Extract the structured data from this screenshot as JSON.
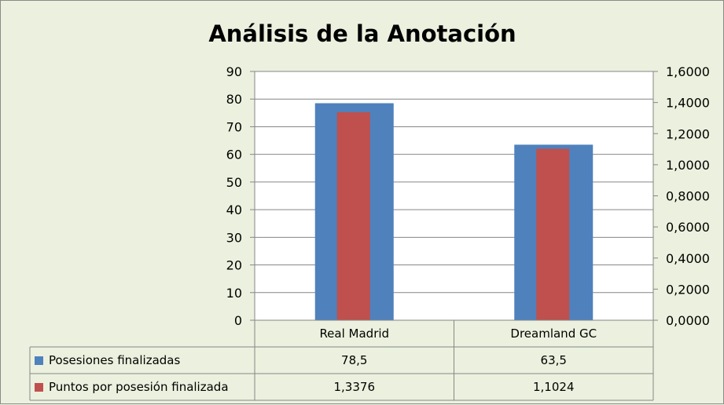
{
  "chart_data": {
    "type": "bar",
    "title": "Análisis de la Anotación",
    "categories": [
      "Real Madrid",
      "Dreamland GC"
    ],
    "series": [
      {
        "name": "Posesiones finalizadas",
        "values": [
          78.5,
          63.5
        ],
        "display_values": [
          "78,5",
          "63,5"
        ],
        "axis": "left",
        "color": "#4f81bd"
      },
      {
        "name": "Puntos por posesión finalizada",
        "values": [
          1.3376,
          1.1024
        ],
        "display_values": [
          "1,3376",
          "1,1024"
        ],
        "axis": "right",
        "color": "#c0504d"
      }
    ],
    "y_left": {
      "ylim": [
        0,
        90
      ],
      "ticks": [
        0,
        10,
        20,
        30,
        40,
        50,
        60,
        70,
        80,
        90
      ],
      "tick_labels": [
        "0",
        "10",
        "20",
        "30",
        "40",
        "50",
        "60",
        "70",
        "80",
        "90"
      ]
    },
    "y_right": {
      "ylim": [
        0,
        1.6
      ],
      "ticks": [
        0,
        0.2,
        0.4,
        0.6,
        0.8,
        1.0,
        1.2,
        1.4,
        1.6
      ],
      "tick_labels": [
        "0,0000",
        "0,2000",
        "0,4000",
        "0,6000",
        "0,8000",
        "1,0000",
        "1,2000",
        "1,4000",
        "1,6000"
      ]
    },
    "grid": true,
    "legend": "data-table"
  }
}
